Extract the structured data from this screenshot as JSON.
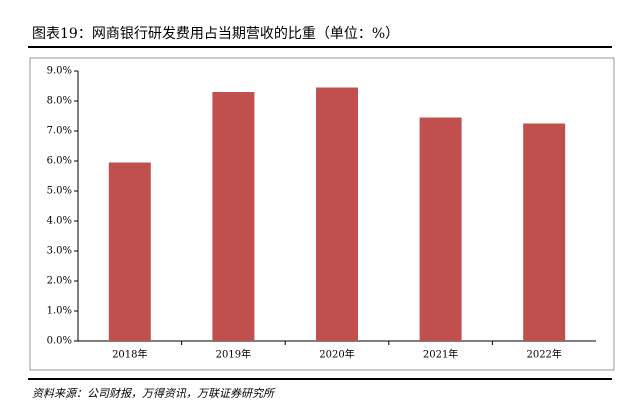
{
  "chart_data": {
    "type": "bar",
    "title": "图表19：网商银行研发费用占当期营收的比重（单位：%）",
    "categories": [
      "2018年",
      "2019年",
      "2020年",
      "2021年",
      "2022年"
    ],
    "values": [
      5.95,
      8.3,
      8.45,
      7.45,
      7.25
    ],
    "color": "#c0504d",
    "ylim": [
      0,
      9
    ],
    "yticks": [
      {
        "value": 0,
        "label": "0.0%"
      },
      {
        "value": 1,
        "label": "1.0%"
      },
      {
        "value": 2,
        "label": "2.0%"
      },
      {
        "value": 3,
        "label": "3.0%"
      },
      {
        "value": 4,
        "label": "4.0%"
      },
      {
        "value": 5,
        "label": "5.0%"
      },
      {
        "value": 6,
        "label": "6.0%"
      },
      {
        "value": 7,
        "label": "7.0%"
      },
      {
        "value": 8,
        "label": "8.0%"
      },
      {
        "value": 9,
        "label": "9.0%"
      }
    ],
    "grid": false
  },
  "source": "资料来源：公司财报，万得资讯，万联证券研究所"
}
